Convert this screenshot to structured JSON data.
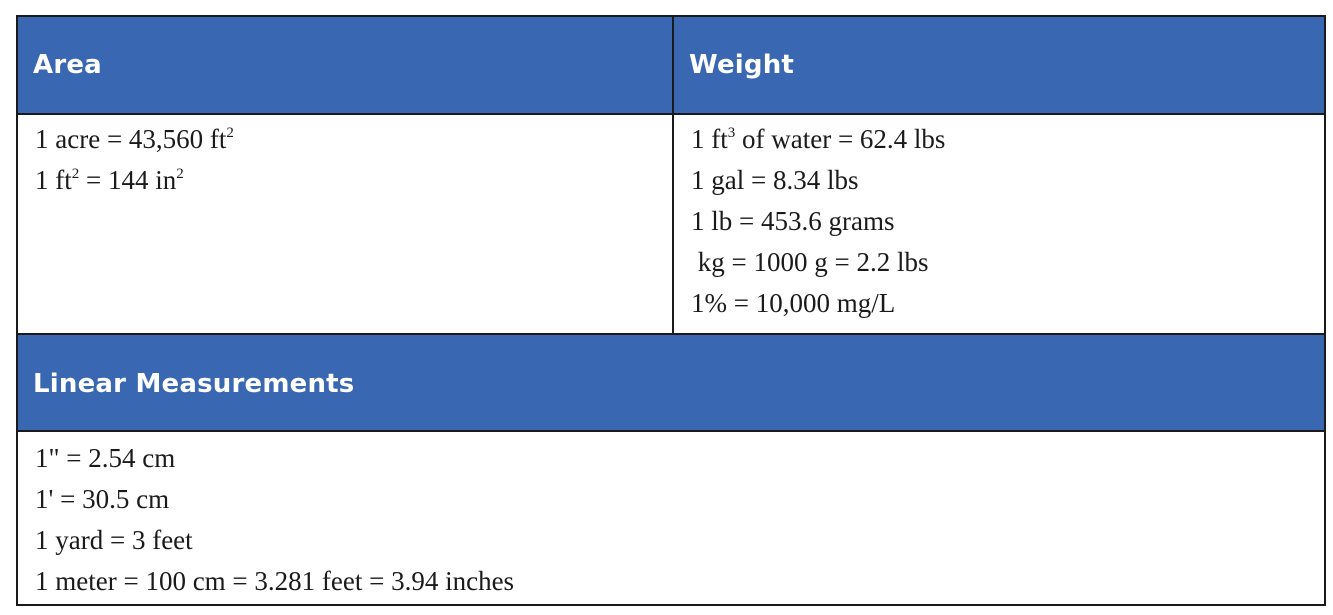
{
  "area": {
    "title": "Area",
    "lines": [
      {
        "pre": "1 acre = 43,560 ft",
        "sup": "2",
        "post": ""
      },
      {
        "pre": "1 ft",
        "sup": "2",
        "post": " = 144 in",
        "sup2": "2"
      }
    ]
  },
  "weight": {
    "title": "Weight",
    "lines": [
      {
        "pre": "1 ft",
        "sup": "3",
        "post": " of water = 62.4 lbs"
      },
      {
        "pre": "1 gal = 8.34 lbs"
      },
      {
        "pre": "1 lb = 453.6 grams"
      },
      {
        "pre": " kg = 1000 g = 2.2 lbs"
      },
      {
        "pre": "1% = 10,000 mg/L"
      }
    ]
  },
  "linear": {
    "title": "Linear Measurements",
    "lines": [
      {
        "pre": "1\" = 2.54 cm"
      },
      {
        "pre": "1' = 30.5 cm"
      },
      {
        "pre": "1 yard = 3 feet"
      },
      {
        "pre": "1 meter = 100 cm = 3.281 feet = 3.94 inches"
      }
    ]
  },
  "colors": {
    "header_bg": "#3a67b2",
    "header_text": "#ffffff",
    "border": "#1a1a1a"
  }
}
